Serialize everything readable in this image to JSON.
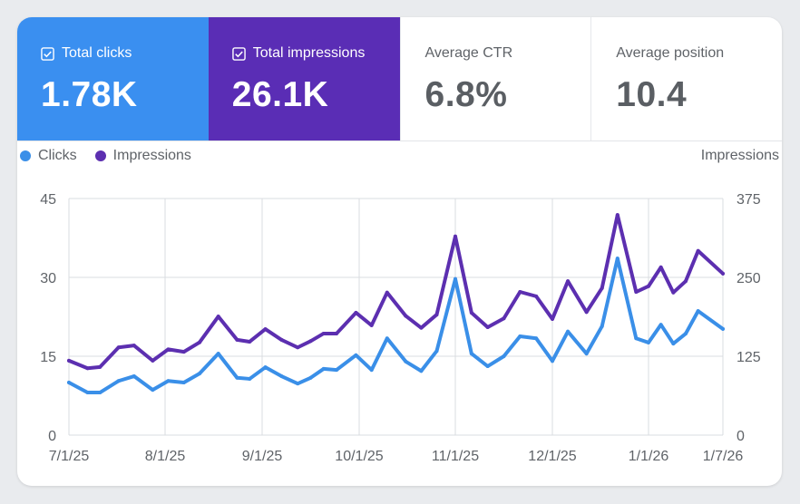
{
  "tiles": [
    {
      "label": "Total clicks",
      "value": "1.78K",
      "checked": true,
      "color": "#3a8ff0"
    },
    {
      "label": "Total impressions",
      "value": "26.1K",
      "checked": true,
      "color": "#5a2db5"
    },
    {
      "label": "Average CTR",
      "value": "6.8%",
      "checked": false
    },
    {
      "label": "Average position",
      "value": "10.4",
      "checked": false
    }
  ],
  "chart_data": {
    "type": "line",
    "legend": {
      "placement": "top-left",
      "entries": [
        "Clicks",
        "Impressions"
      ]
    },
    "y_left": {
      "ticks": [
        "0",
        "15",
        "30",
        "45"
      ],
      "range": [
        0,
        45
      ]
    },
    "y_right": {
      "label": "Impressions",
      "ticks": [
        "0",
        "125",
        "250",
        "375"
      ],
      "range": [
        0,
        375
      ]
    },
    "x_ticks": [
      "7/1/25",
      "8/1/25",
      "9/1/25",
      "10/1/25",
      "11/1/25",
      "12/1/25",
      "1/1/26",
      "1/7/26"
    ],
    "grid": true,
    "x": [
      "2025-07-01",
      "2025-07-07",
      "2025-07-11",
      "2025-07-17",
      "2025-07-22",
      "2025-07-28",
      "2025-08-02",
      "2025-08-07",
      "2025-08-12",
      "2025-08-18",
      "2025-08-24",
      "2025-08-28",
      "2025-09-02",
      "2025-09-07",
      "2025-09-12",
      "2025-09-16",
      "2025-09-20",
      "2025-09-24",
      "2025-09-30",
      "2025-10-05",
      "2025-10-10",
      "2025-10-16",
      "2025-10-21",
      "2025-10-26",
      "2025-11-01",
      "2025-11-06",
      "2025-11-11",
      "2025-11-16",
      "2025-11-21",
      "2025-11-26",
      "2025-12-01",
      "2025-12-06",
      "2025-12-12",
      "2025-12-17",
      "2025-12-22",
      "2025-12-28",
      "2026-01-01",
      "2026-01-02",
      "2026-01-03",
      "2026-01-04",
      "2026-01-05",
      "2026-01-07"
    ],
    "series": [
      {
        "name": "Clicks",
        "axis": "left",
        "color": "#3a8fe8",
        "values": [
          10.0,
          8.1,
          8.1,
          10.3,
          11.2,
          8.6,
          10.3,
          10.0,
          11.7,
          15.5,
          10.9,
          10.7,
          12.9,
          11.2,
          9.8,
          10.9,
          12.6,
          12.4,
          15.2,
          12.4,
          18.4,
          14.0,
          12.2,
          16.0,
          29.7,
          15.5,
          13.1,
          15.0,
          18.8,
          18.4,
          14.1,
          19.7,
          15.5,
          20.7,
          33.6,
          18.4,
          17.6,
          21.0,
          17.4,
          19.3,
          23.6,
          20.2
        ]
      },
      {
        "name": "Impressions",
        "axis": "right",
        "color": "#5c2fb0",
        "values": [
          118,
          106,
          108,
          139,
          142,
          118,
          136,
          132,
          147,
          188,
          151,
          148,
          168,
          151,
          139,
          149,
          161,
          161,
          194,
          174,
          226,
          189,
          170,
          191,
          315,
          194,
          171,
          185,
          227,
          220,
          184,
          244,
          195,
          233,
          349,
          227,
          236,
          266,
          226,
          244,
          292,
          256
        ]
      }
    ]
  }
}
